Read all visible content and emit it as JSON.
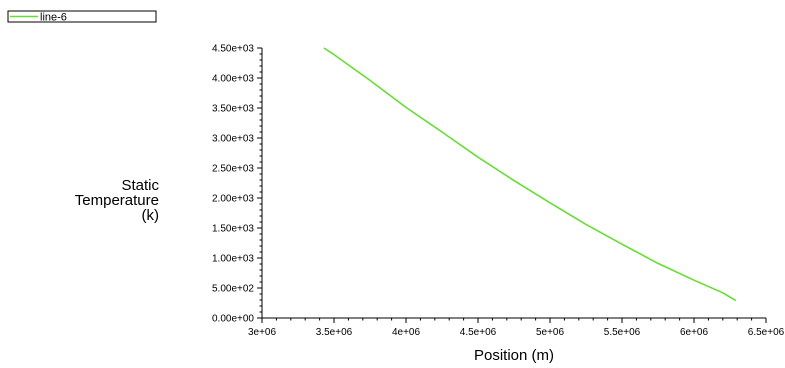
{
  "chart_data": {
    "type": "line",
    "xlabel": "Position (m)",
    "ylabel": [
      "Static",
      "Temperature",
      "(k)"
    ],
    "xlim": [
      3000000,
      6500000
    ],
    "ylim": [
      0,
      4500
    ],
    "x_ticks": [
      {
        "value": 3000000,
        "label": "3e+06"
      },
      {
        "value": 3500000,
        "label": "3.5e+06"
      },
      {
        "value": 4000000,
        "label": "4e+06"
      },
      {
        "value": 4500000,
        "label": "4.5e+06"
      },
      {
        "value": 5000000,
        "label": "5e+06"
      },
      {
        "value": 5500000,
        "label": "5.5e+06"
      },
      {
        "value": 6000000,
        "label": "6e+06"
      },
      {
        "value": 6500000,
        "label": "6.5e+06"
      }
    ],
    "y_ticks": [
      {
        "value": 0,
        "label": "0.00e+00"
      },
      {
        "value": 500,
        "label": "5.00e+02"
      },
      {
        "value": 1000,
        "label": "1.00e+03"
      },
      {
        "value": 1500,
        "label": "1.50e+03"
      },
      {
        "value": 2000,
        "label": "2.00e+03"
      },
      {
        "value": 2500,
        "label": "2.50e+03"
      },
      {
        "value": 3000,
        "label": "3.00e+03"
      },
      {
        "value": 3500,
        "label": "3.50e+03"
      },
      {
        "value": 4000,
        "label": "4.00e+03"
      },
      {
        "value": 4500,
        "label": "4.50e+03"
      }
    ],
    "legend_position": "top-left",
    "grid": false,
    "series": [
      {
        "name": "line-6",
        "color": "#66dd33",
        "x": [
          3430000,
          3500000,
          3750000,
          4000000,
          4250000,
          4500000,
          4750000,
          5000000,
          5250000,
          5500000,
          5750000,
          6000000,
          6200000,
          6290000
        ],
        "y": [
          4500,
          4390,
          3960,
          3510,
          3100,
          2680,
          2290,
          1920,
          1560,
          1230,
          910,
          630,
          420,
          290
        ]
      }
    ]
  }
}
